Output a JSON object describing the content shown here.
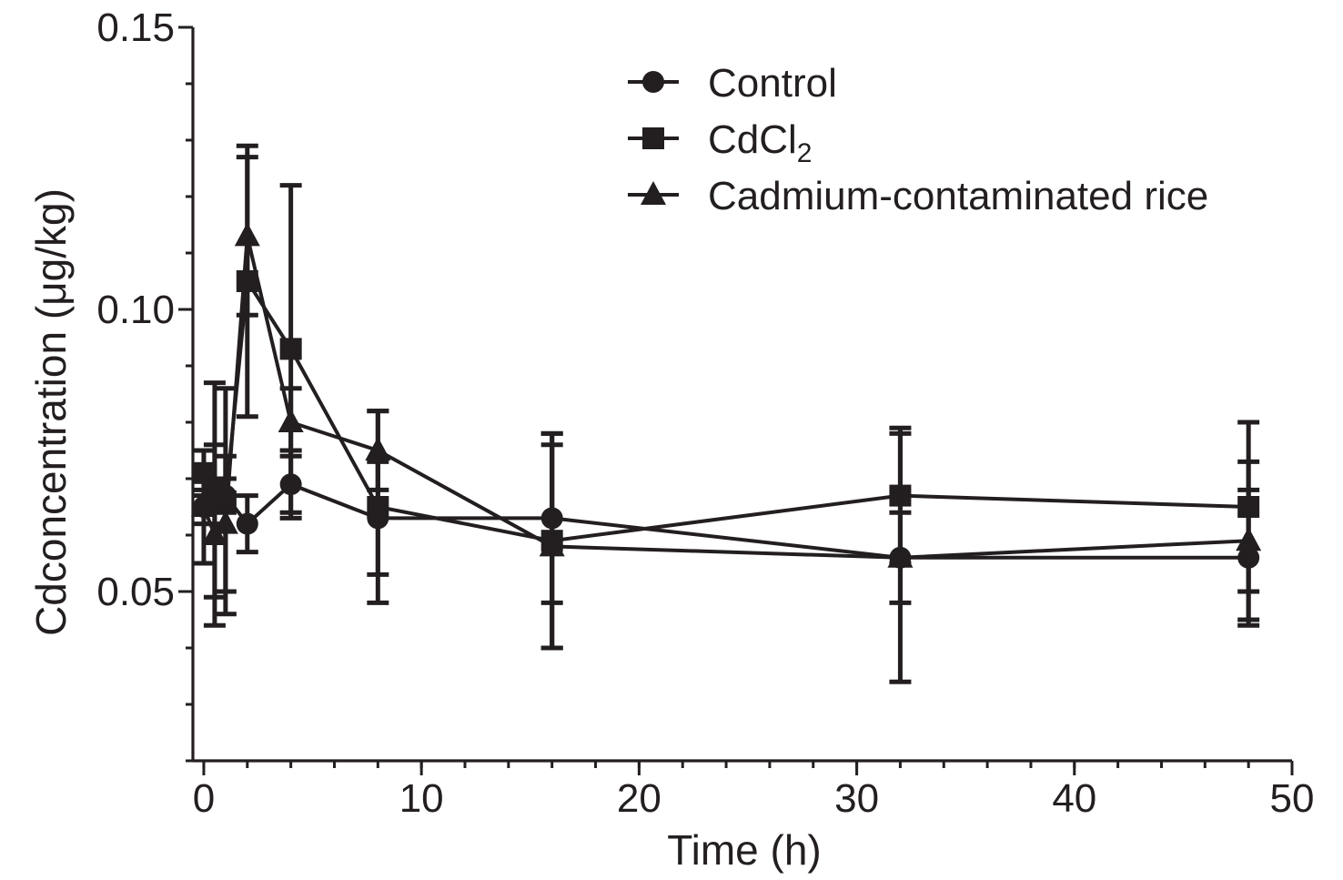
{
  "chart_data": {
    "type": "line",
    "title": "",
    "xlabel": "Time (h)",
    "ylabel": "Cdconcentration (μg/kg)",
    "xlim": [
      -0.5,
      50
    ],
    "ylim": [
      0.02,
      0.15
    ],
    "xticks": [
      0,
      10,
      20,
      30,
      40,
      50
    ],
    "xtick_labels": [
      "0",
      "10",
      "20",
      "30",
      "40",
      "50"
    ],
    "yticks": [
      0.05,
      0.1,
      0.15
    ],
    "ytick_labels": [
      "0.05",
      "0.10",
      "0.15"
    ],
    "x_minor_step": 2,
    "y_minor_step": 0.01,
    "grid": false,
    "legend_position": "top-right",
    "series": [
      {
        "name": "Control",
        "legend_label": "Control",
        "marker": "circle",
        "x": [
          0,
          0.5,
          1,
          2,
          4,
          8,
          16,
          32,
          48
        ],
        "y": [
          0.065,
          0.066,
          0.067,
          0.062,
          0.069,
          0.063,
          0.063,
          0.056,
          0.056
        ],
        "err": [
          0.003,
          0.004,
          0.003,
          0.005,
          0.006,
          0.01,
          0.015,
          0.008,
          0.012
        ]
      },
      {
        "name": "CdCl2",
        "legend_label": "CdCl",
        "legend_sub": "2",
        "marker": "square",
        "x": [
          0,
          0.5,
          1,
          2,
          4,
          8,
          16,
          32,
          48
        ],
        "y": [
          0.071,
          0.068,
          0.066,
          0.105,
          0.093,
          0.065,
          0.059,
          0.067,
          0.065
        ],
        "err": [
          0.004,
          0.019,
          0.02,
          0.024,
          0.029,
          0.017,
          0.019,
          0.012,
          0.015
        ]
      },
      {
        "name": "Cadmium-contaminated rice",
        "legend_label": "Cadmium-contaminated rice",
        "marker": "triangle",
        "x": [
          0,
          0.5,
          1,
          2,
          4,
          8,
          16,
          32,
          48
        ],
        "y": [
          0.065,
          0.06,
          0.062,
          0.113,
          0.08,
          0.075,
          0.058,
          0.056,
          0.059
        ],
        "err": [
          0.01,
          0.016,
          0.012,
          0.014,
          0.006,
          0.007,
          0.018,
          0.022,
          0.014
        ]
      }
    ]
  }
}
